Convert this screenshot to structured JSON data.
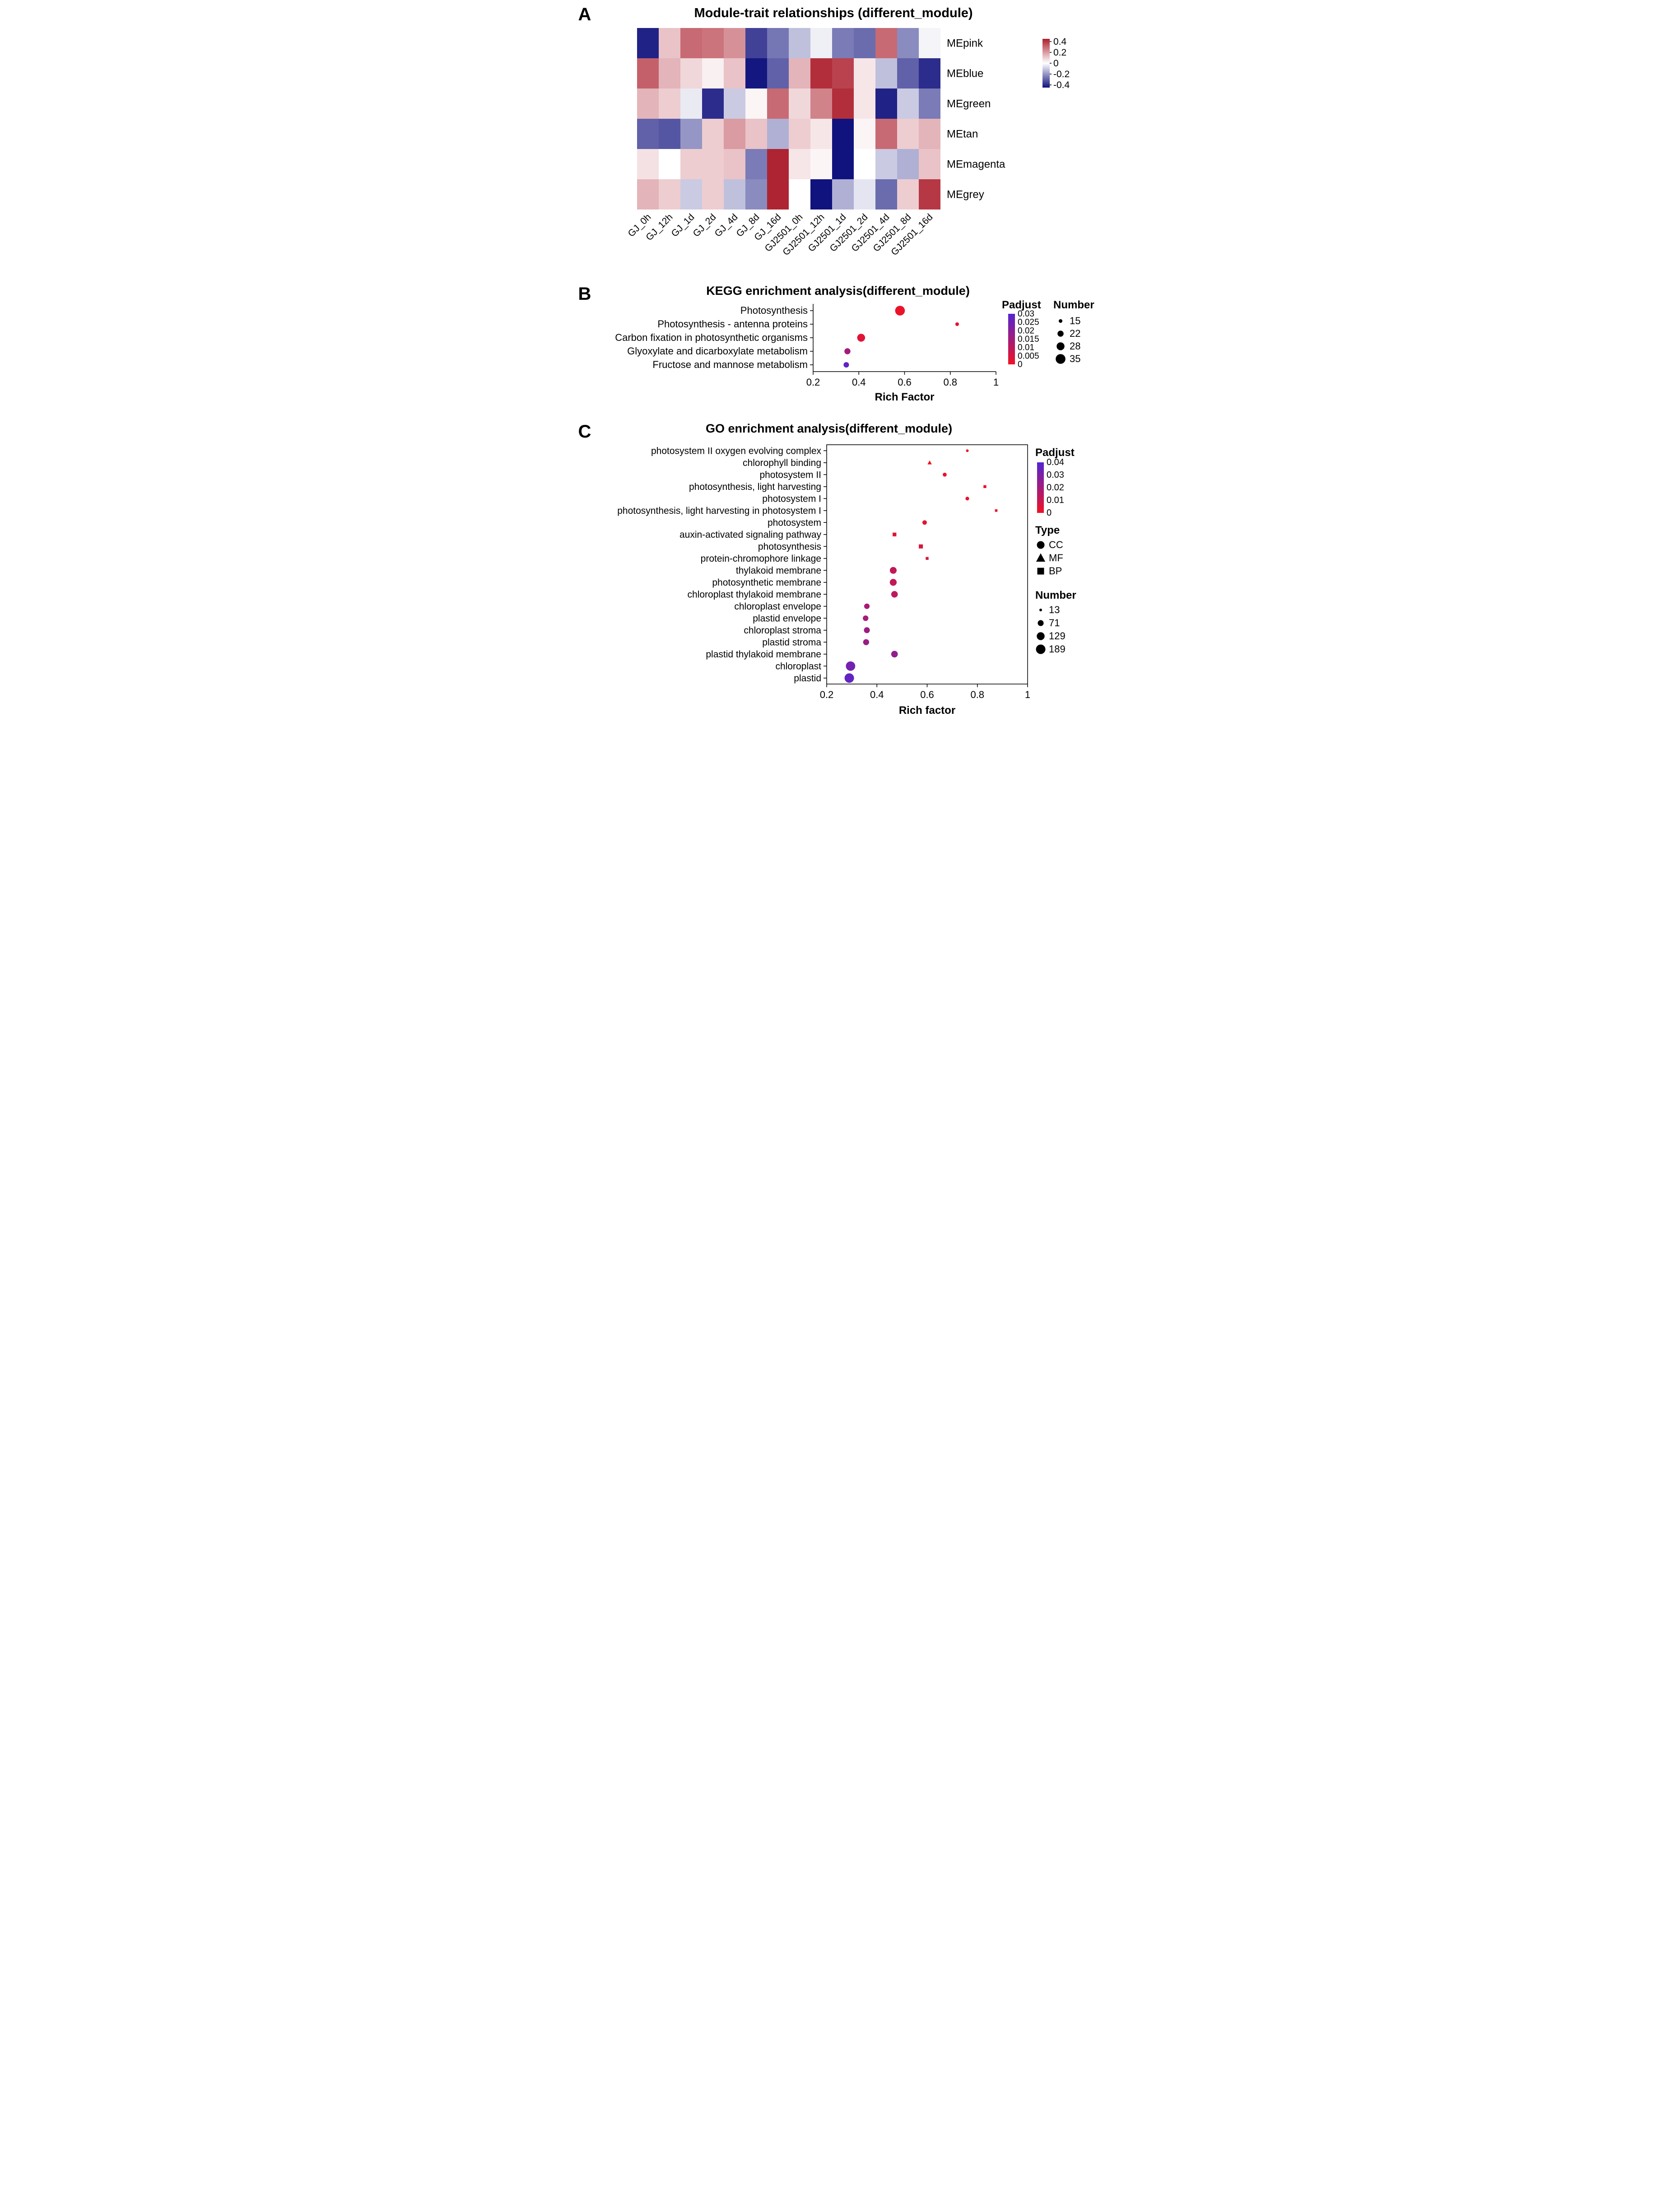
{
  "figure": {
    "panels": [
      {
        "letter": "A"
      },
      {
        "letter": "B"
      },
      {
        "letter": "C"
      }
    ]
  },
  "chart_data": [
    {
      "id": "module_trait_heatmap",
      "type": "heatmap",
      "title": "Module-trait relationships (different_module)",
      "rows": [
        "MEpink",
        "MEblue",
        "MEgreen",
        "MEtan",
        "MEmagenta",
        "MEgrey"
      ],
      "columns": [
        "GJ_0h",
        "GJ_12h",
        "GJ_1d",
        "GJ_2d",
        "GJ_4d",
        "GJ_8d",
        "GJ_16d",
        "GJ2501_0h",
        "GJ2501_12h",
        "GJ2501_1d",
        "GJ2501_2d",
        "GJ2501_4d",
        "GJ2501_8d",
        "GJ2501_16d"
      ],
      "values": [
        [
          -0.42,
          0.12,
          0.3,
          0.28,
          0.22,
          -0.36,
          -0.26,
          -0.12,
          -0.03,
          -0.25,
          -0.28,
          0.3,
          -0.22,
          -0.02
        ],
        [
          0.32,
          0.15,
          0.08,
          0.03,
          0.12,
          -0.44,
          -0.3,
          0.15,
          0.42,
          0.38,
          0.05,
          -0.12,
          -0.3,
          -0.4
        ],
        [
          0.15,
          0.1,
          -0.04,
          -0.4,
          -0.1,
          0.02,
          0.3,
          0.08,
          0.25,
          0.42,
          0.05,
          -0.42,
          -0.1,
          -0.25
        ],
        [
          -0.3,
          -0.32,
          -0.2,
          0.1,
          0.2,
          0.12,
          -0.15,
          0.1,
          0.05,
          -0.45,
          0.02,
          0.3,
          0.1,
          0.15
        ],
        [
          0.06,
          0.0,
          0.1,
          0.1,
          0.12,
          -0.25,
          0.44,
          0.05,
          0.02,
          -0.45,
          0.0,
          -0.1,
          -0.15,
          0.12
        ],
        [
          0.15,
          0.1,
          -0.1,
          0.1,
          -0.12,
          -0.22,
          0.44,
          0.0,
          -0.45,
          -0.15,
          -0.05,
          -0.28,
          0.1,
          0.4
        ]
      ],
      "color_scale": {
        "limit": 0.45,
        "high_color": "#AC1F2D",
        "mid_color": "#FFFFFF",
        "low_color": "#10127D",
        "legend_ticks": [
          "0.4",
          "0.2",
          "0",
          "-0.2",
          "-0.4"
        ],
        "legend_tick_values": [
          0.4,
          0.2,
          0,
          -0.2,
          -0.4
        ],
        "legend_position": "right"
      }
    },
    {
      "id": "kegg_enrichment",
      "type": "scatter",
      "title": "KEGG enrichment analysis(different_module)",
      "xlabel": "Rich Factor",
      "xlim": [
        0.2,
        1
      ],
      "xticks": [
        "0.2",
        "0.4",
        "0.6",
        "0.8",
        "1"
      ],
      "xtick_values": [
        0.2,
        0.4,
        0.6,
        0.8,
        1
      ],
      "grid": false,
      "points": [
        {
          "label": "Photosynthesis",
          "rich_factor": 0.58,
          "number": 35,
          "padjust": 0.001
        },
        {
          "label": "Photosynthesis - antenna proteins",
          "rich_factor": 0.83,
          "number": 15,
          "padjust": 0.002
        },
        {
          "label": "Carbon fixation in photosynthetic organisms",
          "rich_factor": 0.41,
          "number": 28,
          "padjust": 0.003
        },
        {
          "label": "Glyoxylate and dicarboxylate metabolism",
          "rich_factor": 0.35,
          "number": 22,
          "padjust": 0.015
        },
        {
          "label": "Fructose and mannose metabolism",
          "rich_factor": 0.345,
          "number": 20,
          "padjust": 0.028
        }
      ],
      "padjust_legend": {
        "title": "Padjust",
        "max": 0.03,
        "low_color": "#F01224",
        "high_color": "#5325D2",
        "labels": [
          "0.03",
          "0.025",
          "0.02",
          "0.015",
          "0.01",
          "0.005",
          "0"
        ],
        "tick_values": [
          0.03,
          0.025,
          0.02,
          0.015,
          0.01,
          0.005,
          0
        ]
      },
      "number_legend": {
        "title": "Number",
        "values": [
          15,
          22,
          28,
          35
        ]
      },
      "legend_position": "right"
    },
    {
      "id": "go_enrichment",
      "type": "scatter",
      "title": "GO enrichment analysis(different_module)",
      "xlabel": "Rich factor",
      "xlim": [
        0.2,
        1
      ],
      "xticks": [
        "0.2",
        "0.4",
        "0.6",
        "0.8",
        "1"
      ],
      "xtick_values": [
        0.2,
        0.4,
        0.6,
        0.8,
        1
      ],
      "grid": false,
      "points": [
        {
          "label": "photosystem II oxygen evolving complex",
          "go_type": "CC",
          "rich_factor": 0.76,
          "number": 13,
          "padjust": 0.001
        },
        {
          "label": "chlorophyll binding",
          "go_type": "MF",
          "rich_factor": 0.61,
          "number": 25,
          "padjust": 0.001
        },
        {
          "label": "photosystem II",
          "go_type": "CC",
          "rich_factor": 0.67,
          "number": 30,
          "padjust": 0.002
        },
        {
          "label": "photosynthesis, light harvesting",
          "go_type": "BP",
          "rich_factor": 0.83,
          "number": 20,
          "padjust": 0.002
        },
        {
          "label": "photosystem I",
          "go_type": "CC",
          "rich_factor": 0.76,
          "number": 26,
          "padjust": 0.002
        },
        {
          "label": "photosynthesis, light harvesting in photosystem I",
          "go_type": "BP",
          "rich_factor": 0.875,
          "number": 15,
          "padjust": 0.002
        },
        {
          "label": "photosystem",
          "go_type": "CC",
          "rich_factor": 0.59,
          "number": 40,
          "padjust": 0.003
        },
        {
          "label": "auxin-activated signaling pathway",
          "go_type": "BP",
          "rich_factor": 0.47,
          "number": 35,
          "padjust": 0.005
        },
        {
          "label": "photosynthesis",
          "go_type": "BP",
          "rich_factor": 0.575,
          "number": 42,
          "padjust": 0.006
        },
        {
          "label": "protein-chromophore linkage",
          "go_type": "BP",
          "rich_factor": 0.6,
          "number": 20,
          "padjust": 0.007
        },
        {
          "label": "thylakoid membrane",
          "go_type": "CC",
          "rich_factor": 0.465,
          "number": 95,
          "padjust": 0.012
        },
        {
          "label": "photosynthetic membrane",
          "go_type": "CC",
          "rich_factor": 0.465,
          "number": 97,
          "padjust": 0.012
        },
        {
          "label": "chloroplast thylakoid membrane",
          "go_type": "CC",
          "rich_factor": 0.47,
          "number": 88,
          "padjust": 0.013
        },
        {
          "label": "chloroplast envelope",
          "go_type": "CC",
          "rich_factor": 0.36,
          "number": 60,
          "padjust": 0.018
        },
        {
          "label": "plastid envelope",
          "go_type": "CC",
          "rich_factor": 0.355,
          "number": 62,
          "padjust": 0.019
        },
        {
          "label": "chloroplast stroma",
          "go_type": "CC",
          "rich_factor": 0.36,
          "number": 71,
          "padjust": 0.022
        },
        {
          "label": "plastid stroma",
          "go_type": "CC",
          "rich_factor": 0.357,
          "number": 73,
          "padjust": 0.022
        },
        {
          "label": "plastid thylakoid membrane",
          "go_type": "CC",
          "rich_factor": 0.47,
          "number": 90,
          "padjust": 0.024
        },
        {
          "label": "chloroplast",
          "go_type": "CC",
          "rich_factor": 0.295,
          "number": 185,
          "padjust": 0.032
        },
        {
          "label": "plastid",
          "go_type": "CC",
          "rich_factor": 0.29,
          "number": 189,
          "padjust": 0.036
        }
      ],
      "padjust_legend": {
        "title": "Padjust",
        "max": 0.04,
        "low_color": "#F01224",
        "high_color": "#5325D2",
        "labels": [
          "0.04",
          "0.03",
          "0.02",
          "0.01",
          "0"
        ],
        "tick_values": [
          0.04,
          0.03,
          0.02,
          0.01,
          0
        ]
      },
      "type_legend": {
        "title": "Type",
        "items": [
          {
            "label": "CC",
            "shape": "circle"
          },
          {
            "label": "MF",
            "shape": "triangle"
          },
          {
            "label": "BP",
            "shape": "square"
          }
        ]
      },
      "number_legend": {
        "title": "Number",
        "values": [
          13,
          71,
          129,
          189
        ]
      },
      "legend_position": "right"
    }
  ]
}
